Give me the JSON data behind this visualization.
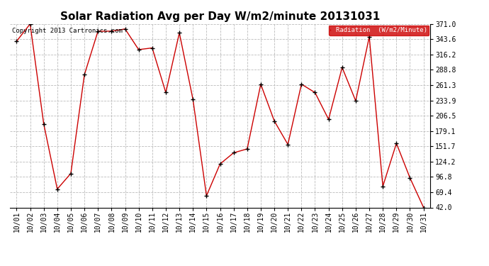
{
  "title": "Solar Radiation Avg per Day W/m2/minute 20131031",
  "copyright": "Copyright 2013 Cartronics.com",
  "legend_label": "Radiation  (W/m2/Minute)",
  "dates": [
    "10/01",
    "10/02",
    "10/03",
    "10/04",
    "10/05",
    "10/06",
    "10/07",
    "10/08",
    "10/09",
    "10/10",
    "10/11",
    "10/12",
    "10/13",
    "10/14",
    "10/15",
    "10/16",
    "10/17",
    "10/18",
    "10/19",
    "10/20",
    "10/21",
    "10/22",
    "10/23",
    "10/24",
    "10/25",
    "10/26",
    "10/27",
    "10/28",
    "10/29",
    "10/30",
    "10/31"
  ],
  "values": [
    340.0,
    371.0,
    192.0,
    75.0,
    103.0,
    280.0,
    358.0,
    358.0,
    362.0,
    325.0,
    328.0,
    248.0,
    355.0,
    236.0,
    63.0,
    120.0,
    140.0,
    147.0,
    263.0,
    197.0,
    155.0,
    263.0,
    248.0,
    200.0,
    293.0,
    233.0,
    348.0,
    80.0,
    157.0,
    95.0,
    42.0
  ],
  "line_color": "#cc0000",
  "marker": "+",
  "marker_color": "#000000",
  "background_color": "#ffffff",
  "grid_color": "#bbbbbb",
  "yticks": [
    42.0,
    69.4,
    96.8,
    124.2,
    151.7,
    179.1,
    206.5,
    233.9,
    261.3,
    288.8,
    316.2,
    343.6,
    371.0
  ],
  "ylim": [
    42.0,
    371.0
  ],
  "title_fontsize": 11,
  "tick_fontsize": 7,
  "legend_bg": "#cc0000",
  "legend_text_color": "white",
  "fig_width": 6.9,
  "fig_height": 3.75,
  "dpi": 100
}
